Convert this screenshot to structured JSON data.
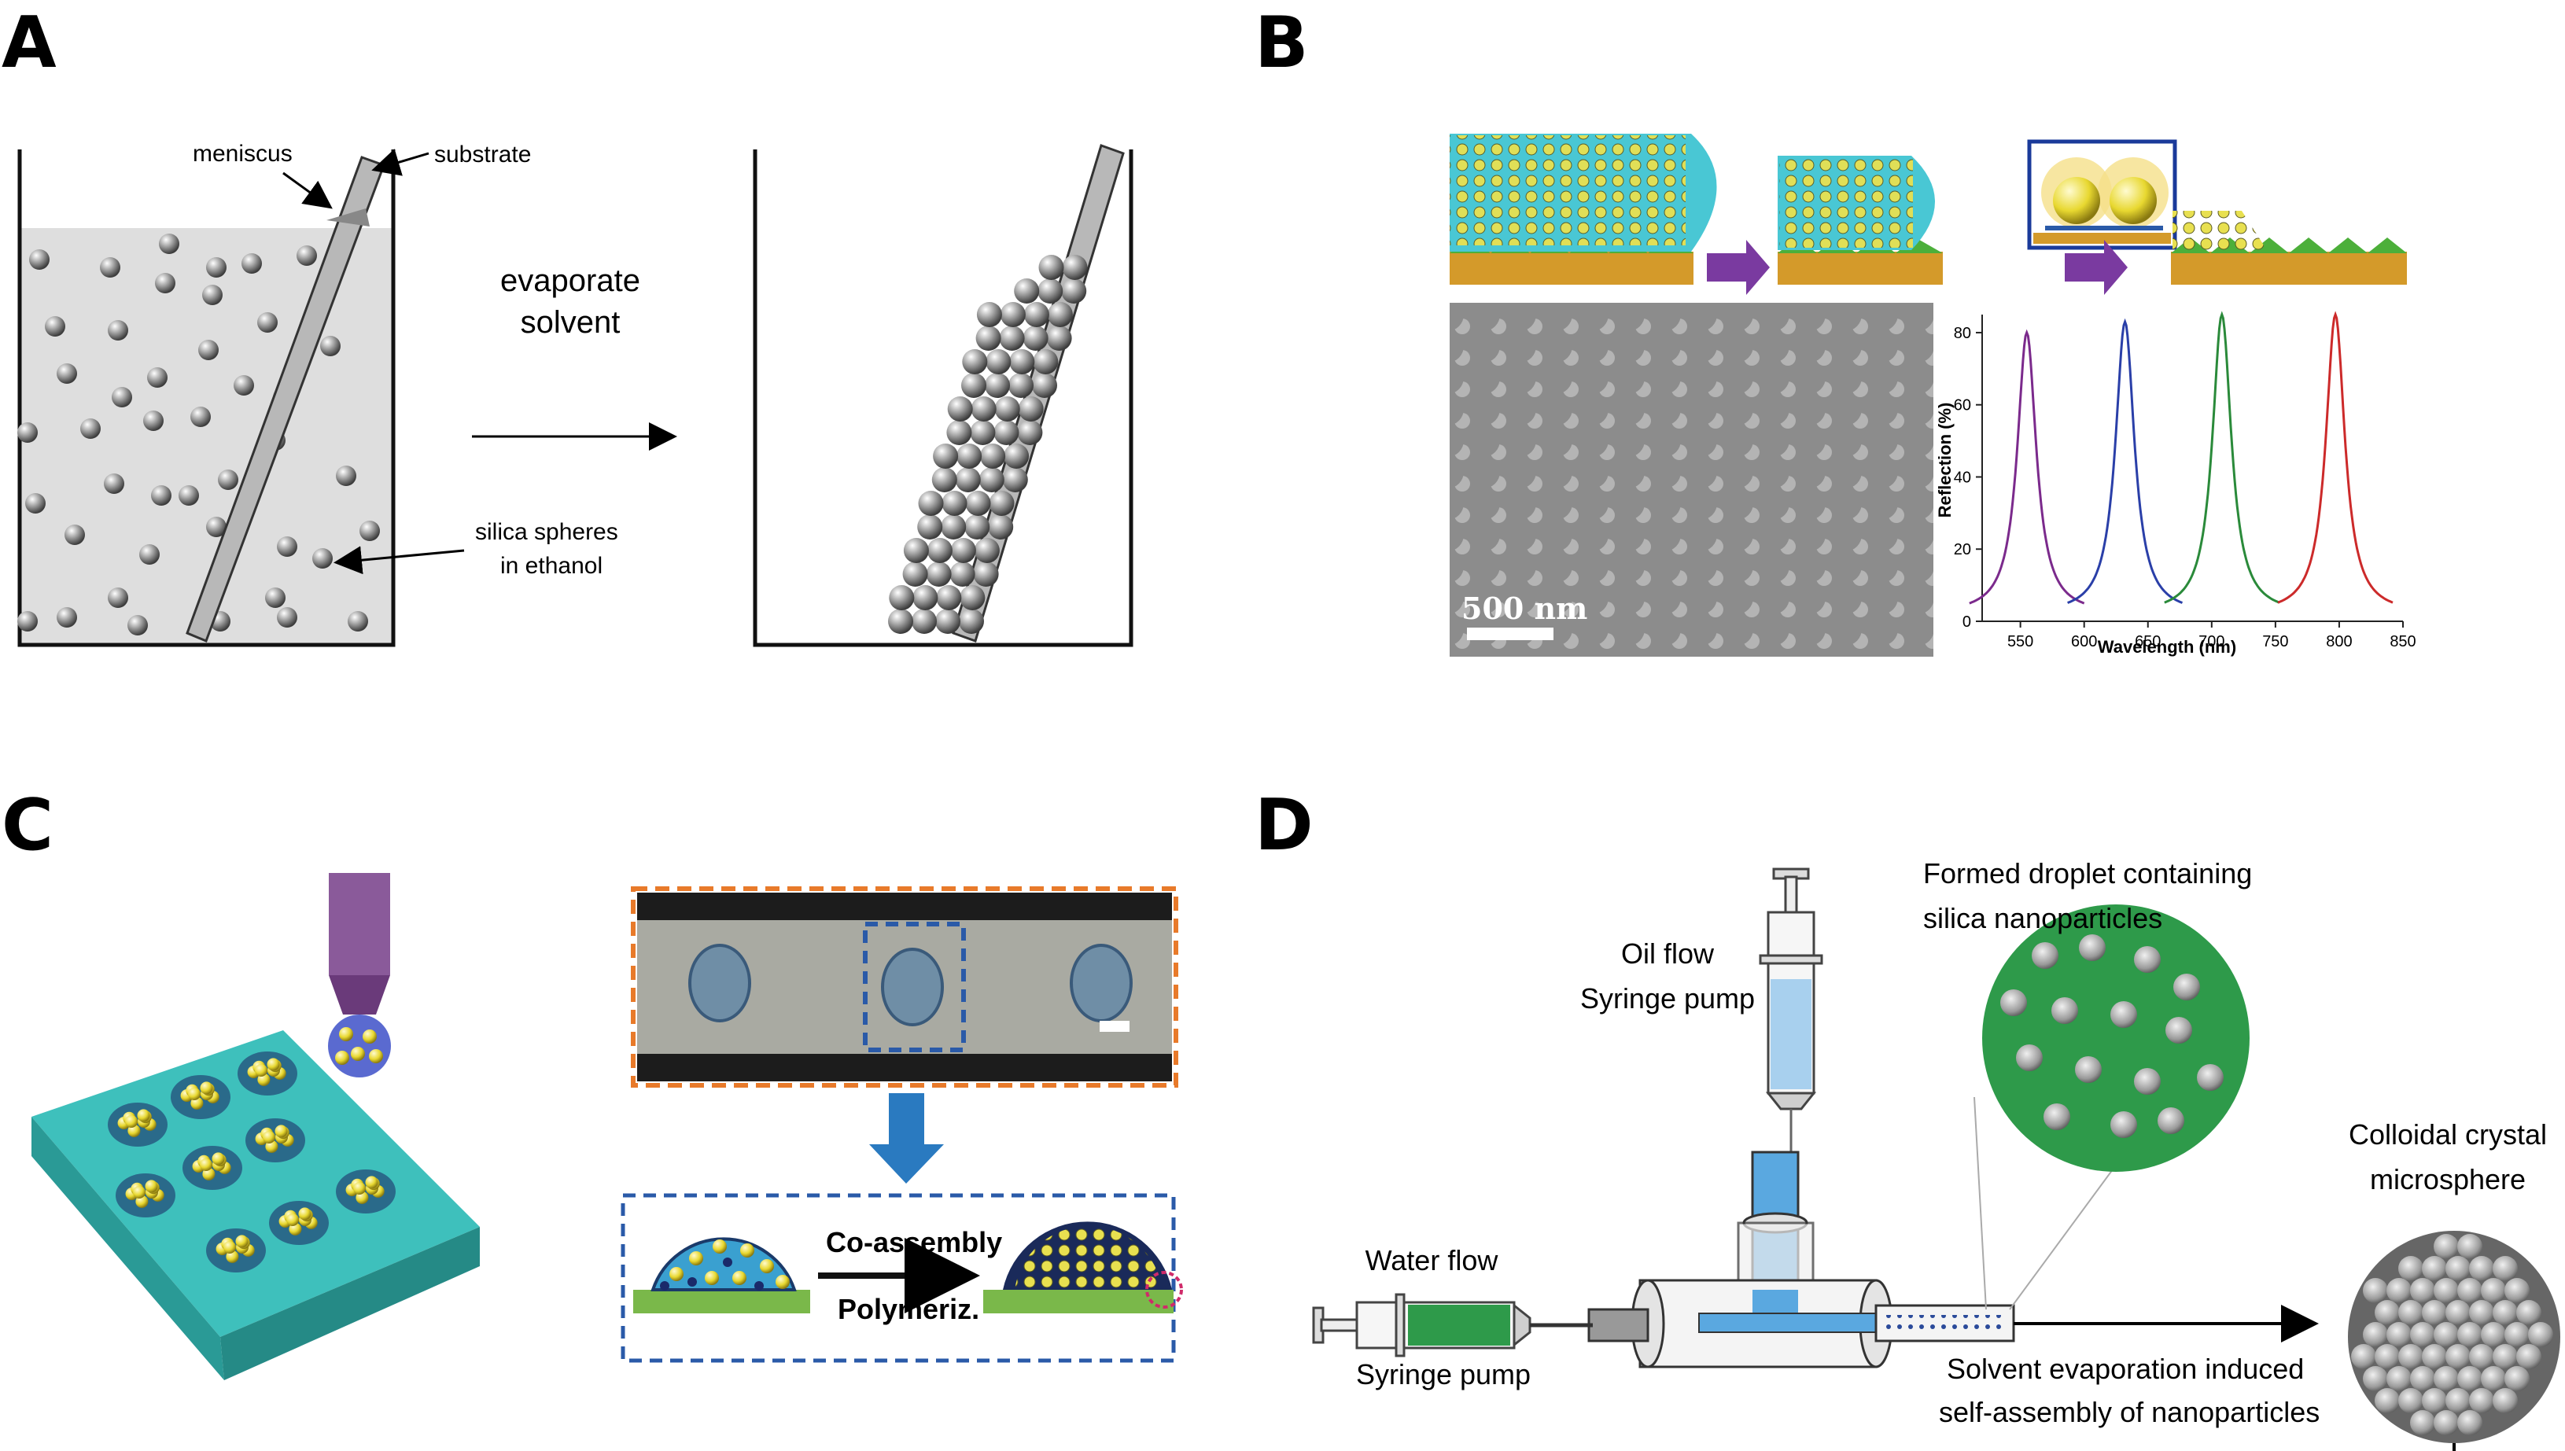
{
  "panels": {
    "a": {
      "letter": "A",
      "label_meniscus": "meniscus",
      "label_substrate": "substrate",
      "label_evaporate_1": "evaporate",
      "label_evaporate_2": "solvent",
      "label_silica_1": "silica spheres",
      "label_silica_2": "in ethanol"
    },
    "b": {
      "letter": "B",
      "scale_bar_label": "500 nm",
      "spectrum": {
        "ylabel": "Reflection (%)",
        "xlabel": "Wavelength (nm)",
        "xticks": [
          "550",
          "600",
          "650",
          "700",
          "750",
          "800",
          "850"
        ],
        "yticks": [
          "0",
          "20",
          "40",
          "60",
          "80"
        ],
        "xlim": [
          520,
          850
        ],
        "ylim": [
          0,
          85
        ],
        "peaks": [
          {
            "center": 555,
            "height": 78,
            "color": "#7b2a8c"
          },
          {
            "center": 632,
            "height": 81,
            "color": "#2a3fa8"
          },
          {
            "center": 708,
            "height": 83,
            "color": "#2a8a3a"
          },
          {
            "center": 797,
            "height": 83,
            "color": "#cc2a2a"
          }
        ]
      }
    },
    "c": {
      "letter": "C",
      "label_coassembly": "Co-assembly",
      "label_polymeriz": "Polymeriz."
    },
    "d": {
      "letter": "D",
      "label_oil_1": "Oil flow",
      "label_oil_2": "Syringe pump",
      "label_droplet_1": "Formed droplet containing",
      "label_droplet_2": "silica nanoparticles",
      "label_water": "Water flow",
      "label_syringe": "Syringe pump",
      "label_colloidal_1": "Colloidal crystal",
      "label_colloidal_2": "microsphere",
      "label_solvent_1": "Solvent evaporation induced",
      "label_solvent_2": "self-assembly of nanoparticles"
    }
  },
  "colors": {
    "sphere_gray": "#8a8a8a",
    "liquid": "#dcdcdc",
    "teal": "#2fb3b0",
    "yellow": "#f0e040",
    "green_drop": "#2e9a4a",
    "orange_dash": "#e87a2a",
    "blue_dash": "#2a5aa8"
  }
}
